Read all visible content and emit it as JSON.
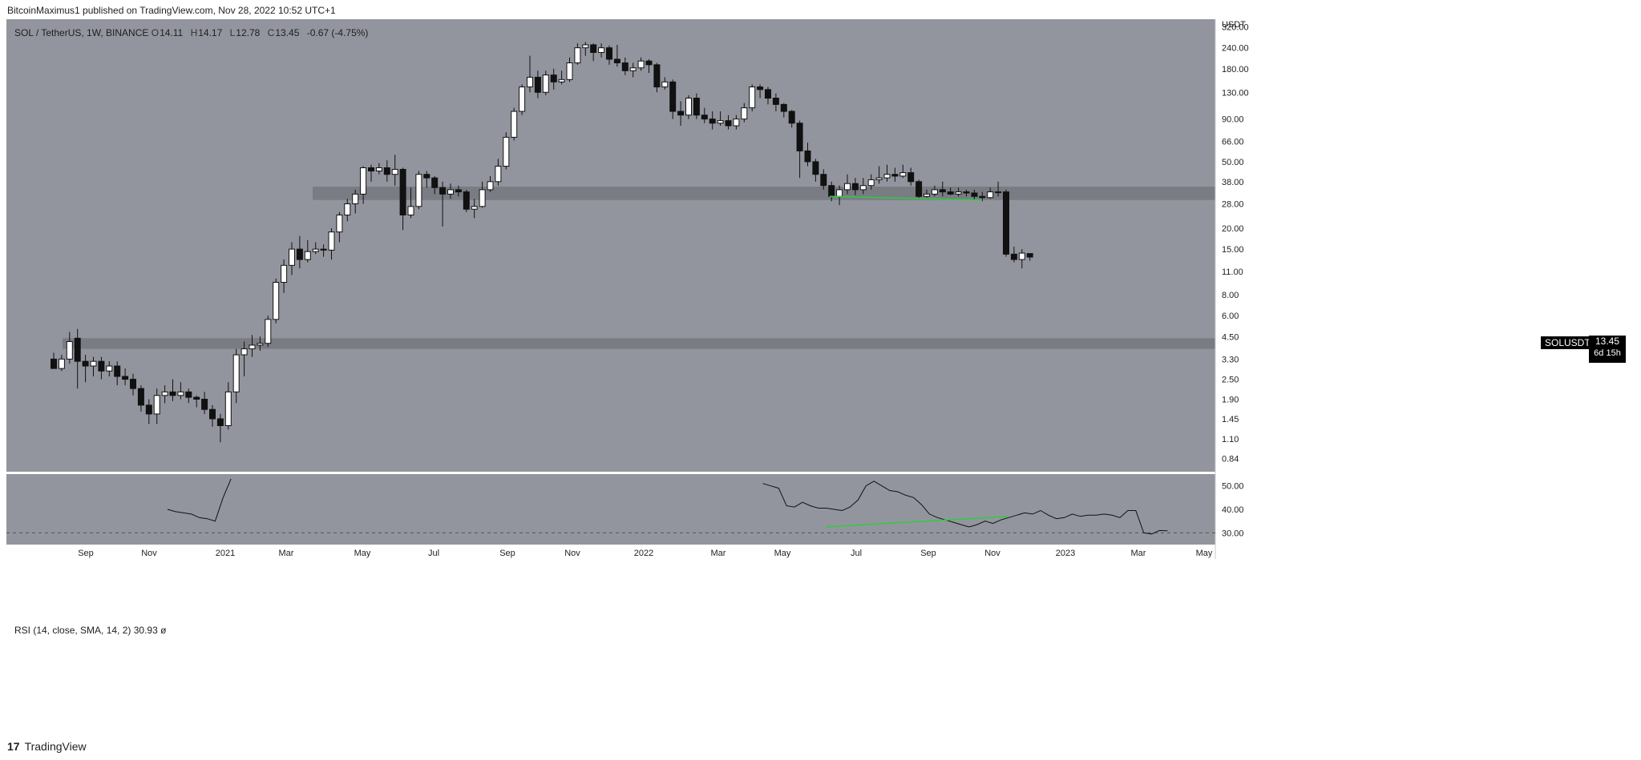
{
  "header": {
    "publisher": "BitcoinMaximus1 published on TradingView.com, Nov 28, 2022 10:52 UTC+1"
  },
  "legend": {
    "symbol": "SOL / TetherUS, 1W, BINANCE",
    "open_key": "O",
    "open": "14.11",
    "high_key": "H",
    "high": "14.17",
    "low_key": "L",
    "low": "12.78",
    "close_key": "C",
    "close": "13.45",
    "change": "-0.67 (-4.75%)"
  },
  "rsi_legend": {
    "label": "RSI (14, close, SMA, 14, 2)",
    "value": "30.93",
    "extra": "ø"
  },
  "last_price": {
    "pair": "SOLUSDT",
    "price": "13.45",
    "countdown": "6d 15h"
  },
  "footer": {
    "logo_mark": "17",
    "logo_text": "TradingView"
  },
  "colors": {
    "pane_bg": "#93959e",
    "up": "#ffffff",
    "down": "#111111",
    "zone": "#6d6f77",
    "support_line": "#2ecc40",
    "rsi_line": "#111111",
    "axis_bg": "#ffffff"
  },
  "chart_data": {
    "type": "candlestick",
    "interval": "1W",
    "scale": "log",
    "ylim": [
      0.7,
      380
    ],
    "y_axis_unit": "USDT",
    "y_ticks": [
      "320.00",
      "240.00",
      "180.00",
      "130.00",
      "90.00",
      "66.00",
      "50.00",
      "38.00",
      "28.00",
      "20.00",
      "15.00",
      "11.00",
      "8.00",
      "6.00",
      "4.50",
      "3.30",
      "2.50",
      "1.90",
      "1.45",
      "1.10",
      "0.84"
    ],
    "x_ticks": [
      "Sep",
      "Nov",
      "2021",
      "Mar",
      "May",
      "Jul",
      "Sep",
      "Nov",
      "2022",
      "Mar",
      "May",
      "Jul",
      "Sep",
      "Nov",
      "2023",
      "Mar",
      "May"
    ],
    "horizontal_zones": [
      [
        29.5,
        35.5
      ],
      [
        3.8,
        4.4
      ]
    ],
    "candles": [
      [
        3.3,
        2.9,
        3.6,
        2.9
      ],
      [
        2.9,
        3.3,
        3.5,
        2.8
      ],
      [
        3.3,
        4.2,
        4.8,
        3.1
      ],
      [
        4.4,
        3.2,
        5.0,
        2.2
      ],
      [
        3.2,
        3.0,
        3.5,
        2.4
      ],
      [
        3.0,
        3.2,
        3.4,
        2.6
      ],
      [
        3.2,
        2.8,
        3.4,
        2.5
      ],
      [
        2.8,
        3.0,
        3.2,
        2.6
      ],
      [
        3.0,
        2.6,
        3.2,
        2.3
      ],
      [
        2.6,
        2.5,
        2.9,
        2.3
      ],
      [
        2.5,
        2.2,
        2.7,
        2.0
      ],
      [
        2.2,
        1.75,
        2.3,
        1.6
      ],
      [
        1.75,
        1.55,
        1.9,
        1.35
      ],
      [
        1.55,
        2.0,
        2.2,
        1.35
      ],
      [
        2.0,
        2.1,
        2.3,
        1.8
      ],
      [
        2.1,
        2.0,
        2.5,
        1.85
      ],
      [
        2.0,
        2.1,
        2.4,
        1.9
      ],
      [
        2.1,
        1.95,
        2.2,
        1.8
      ],
      [
        1.95,
        1.9,
        2.0,
        1.7
      ],
      [
        1.9,
        1.65,
        2.1,
        1.55
      ],
      [
        1.65,
        1.45,
        1.75,
        1.3
      ],
      [
        1.45,
        1.32,
        1.55,
        1.05
      ],
      [
        1.32,
        2.1,
        2.4,
        1.25
      ],
      [
        2.1,
        3.5,
        3.8,
        1.8
      ],
      [
        3.5,
        3.8,
        4.2,
        2.6
      ],
      [
        3.8,
        4.0,
        4.6,
        3.4
      ],
      [
        4.0,
        4.1,
        4.5,
        3.7
      ],
      [
        4.1,
        5.7,
        6.0,
        3.9
      ],
      [
        5.7,
        9.5,
        10.0,
        5.4
      ],
      [
        9.5,
        12.0,
        13.0,
        8.2
      ],
      [
        12.0,
        15.0,
        16.5,
        10.5
      ],
      [
        15.0,
        13.0,
        18.0,
        11.5
      ],
      [
        13.0,
        14.5,
        17.0,
        12.5
      ],
      [
        14.5,
        15.0,
        16.5,
        14.0
      ],
      [
        15.0,
        14.8,
        16.0,
        13.5
      ],
      [
        14.8,
        19.0,
        20.0,
        13.0
      ],
      [
        19.0,
        24.0,
        25.0,
        16.5
      ],
      [
        24.0,
        28.0,
        30.0,
        22.0
      ],
      [
        28.0,
        32.0,
        34.0,
        24.5
      ],
      [
        32.0,
        46.0,
        47.0,
        28.0
      ],
      [
        46.0,
        44.0,
        48.0,
        38.0
      ],
      [
        44.0,
        46.0,
        49.0,
        42.0
      ],
      [
        46.0,
        42.0,
        51.0,
        38.0
      ],
      [
        42.0,
        45.0,
        55.0,
        36.0
      ],
      [
        45.0,
        24.0,
        46.0,
        19.5
      ],
      [
        24.0,
        27.0,
        35.0,
        23.0
      ],
      [
        27.0,
        42.0,
        44.0,
        26.0
      ],
      [
        42.0,
        40.0,
        44.0,
        35.0
      ],
      [
        40.0,
        35.0,
        41.0,
        32.0
      ],
      [
        35.0,
        32.0,
        38.0,
        20.5
      ],
      [
        32.0,
        34.0,
        37.0,
        30.0
      ],
      [
        34.0,
        33.0,
        36.0,
        31.0
      ],
      [
        33.0,
        26.0,
        34.0,
        25.0
      ],
      [
        26.0,
        27.0,
        30.0,
        23.0
      ],
      [
        27.0,
        34.0,
        38.0,
        26.5
      ],
      [
        34.0,
        38.0,
        41.0,
        33.0
      ],
      [
        38.0,
        47.0,
        52.0,
        36.0
      ],
      [
        47.0,
        70.0,
        75.0,
        45.0
      ],
      [
        70.0,
        100.0,
        105.0,
        67.0
      ],
      [
        100.0,
        140.0,
        145.0,
        95.0
      ],
      [
        140.0,
        160.0,
        215.0,
        130.0
      ],
      [
        160.0,
        130.0,
        175.0,
        120.0
      ],
      [
        130.0,
        165.0,
        175.0,
        125.0
      ],
      [
        165.0,
        150.0,
        180.0,
        135.0
      ],
      [
        150.0,
        155.0,
        175.0,
        145.0
      ],
      [
        155.0,
        195.0,
        210.0,
        150.0
      ],
      [
        195.0,
        240.0,
        255.0,
        190.0
      ],
      [
        240.0,
        250.0,
        260.0,
        215.0
      ],
      [
        250.0,
        225.0,
        255.0,
        200.0
      ],
      [
        225.0,
        240.0,
        255.0,
        210.0
      ],
      [
        240.0,
        205.0,
        248.0,
        190.0
      ],
      [
        205.0,
        195.0,
        250.0,
        185.0
      ],
      [
        195.0,
        175.0,
        210.0,
        165.0
      ],
      [
        175.0,
        182.0,
        195.0,
        160.0
      ],
      [
        182.0,
        200.0,
        210.0,
        175.0
      ],
      [
        200.0,
        190.0,
        205.0,
        170.0
      ],
      [
        190.0,
        140.0,
        195.0,
        130.0
      ],
      [
        140.0,
        150.0,
        160.0,
        135.0
      ],
      [
        150.0,
        100.0,
        155.0,
        90.0
      ],
      [
        100.0,
        95.0,
        115.0,
        82.0
      ],
      [
        95.0,
        120.0,
        125.0,
        90.0
      ],
      [
        120.0,
        95.0,
        128.0,
        90.0
      ],
      [
        95.0,
        90.0,
        105.0,
        85.0
      ],
      [
        90.0,
        85.0,
        100.0,
        78.0
      ],
      [
        85.0,
        88.0,
        100.0,
        82.0
      ],
      [
        88.0,
        82.0,
        95.0,
        78.0
      ],
      [
        82.0,
        90.0,
        95.0,
        78.0
      ],
      [
        90.0,
        105.0,
        112.0,
        86.0
      ],
      [
        105.0,
        140.0,
        145.0,
        100.0
      ],
      [
        140.0,
        135.0,
        145.0,
        120.0
      ],
      [
        135.0,
        120.0,
        140.0,
        110.0
      ],
      [
        120.0,
        110.0,
        128.0,
        100.0
      ],
      [
        110.0,
        100.0,
        112.0,
        92.0
      ],
      [
        100.0,
        85.0,
        102.0,
        80.0
      ],
      [
        85.0,
        58.0,
        88.0,
        40.0
      ],
      [
        58.0,
        50.0,
        65.0,
        47.0
      ],
      [
        50.0,
        42.0,
        52.0,
        38.0
      ],
      [
        42.0,
        36.0,
        45.0,
        34.0
      ],
      [
        36.0,
        31.0,
        38.0,
        29.0
      ],
      [
        31.0,
        34.0,
        36.0,
        27.5
      ],
      [
        34.0,
        37.0,
        42.0,
        32.0
      ],
      [
        37.0,
        34.0,
        40.0,
        31.5
      ],
      [
        34.0,
        36.0,
        40.0,
        32.0
      ],
      [
        36.0,
        39.0,
        42.0,
        34.0
      ],
      [
        39.0,
        40.0,
        47.0,
        37.0
      ],
      [
        40.0,
        42.0,
        48.0,
        38.0
      ],
      [
        42.0,
        41.0,
        46.0,
        38.0
      ],
      [
        41.0,
        43.0,
        48.0,
        40.0
      ],
      [
        43.0,
        38.0,
        46.0,
        36.0
      ],
      [
        38.0,
        31.0,
        39.0,
        30.0
      ],
      [
        31.0,
        32.0,
        34.0,
        30.5
      ],
      [
        32.0,
        34.0,
        36.0,
        31.0
      ],
      [
        34.0,
        33.0,
        38.0,
        31.0
      ],
      [
        33.0,
        32.0,
        35.0,
        31.5
      ],
      [
        32.0,
        33.0,
        35.0,
        31.0
      ],
      [
        33.0,
        32.5,
        34.0,
        31.0
      ],
      [
        32.5,
        31.0,
        34.0,
        29.5
      ],
      [
        31.0,
        30.5,
        33.0,
        29.0
      ],
      [
        30.5,
        33.0,
        35.0,
        30.0
      ],
      [
        33.0,
        33.0,
        38.0,
        31.0
      ],
      [
        33.0,
        14.0,
        34.0,
        13.5
      ],
      [
        14.0,
        13.0,
        15.5,
        12.5
      ],
      [
        13.0,
        14.2,
        15.0,
        11.5
      ],
      [
        14.11,
        13.45,
        14.17,
        12.78
      ]
    ],
    "support_trendline": [
      [
        "Jun 2022",
        31.0
      ],
      [
        "Nov 2022",
        29.5
      ]
    ],
    "rsi": {
      "label": "RSI (14, close, SMA, 14, 2)",
      "ylim": [
        25,
        55
      ],
      "y_ticks": [
        "50.00",
        "40.00",
        "30.00"
      ],
      "overbought_dash": 30,
      "values": [
        40,
        39,
        38.5,
        38,
        36.5,
        36,
        35,
        45,
        53,
        null,
        null,
        null,
        null,
        null,
        null,
        null,
        null,
        null,
        null,
        null,
        null,
        null,
        null,
        null,
        null,
        null,
        null,
        null,
        null,
        null,
        null,
        null,
        null,
        null,
        null,
        null,
        null,
        null,
        null,
        null,
        null,
        null,
        null,
        null,
        null,
        null,
        null,
        null,
        null,
        null,
        null,
        null,
        null,
        null,
        null,
        null,
        null,
        null,
        null,
        null,
        null,
        null,
        null,
        null,
        null,
        null,
        null,
        null,
        null,
        null,
        null,
        null,
        null,
        null,
        null,
        51,
        50,
        49,
        41.5,
        41,
        43,
        41.5,
        40.5,
        40.5,
        40,
        39.5,
        41,
        44,
        50,
        52,
        50,
        48,
        47.5,
        46,
        45,
        42,
        38,
        36.5,
        35.5,
        34.5,
        33.5,
        32.5,
        33.5,
        35,
        34,
        35.5,
        36.5,
        37.5,
        38.5,
        38,
        39.5,
        37.5,
        36,
        36.5,
        38,
        37,
        37.5,
        37.5,
        38,
        37.5,
        36.5,
        39.5,
        39.5,
        30,
        29.5,
        31,
        30.9
      ],
      "trendline": [
        [
          "Jun 2022",
          32.5
        ],
        [
          "Nov 2022",
          37.0
        ]
      ]
    }
  }
}
